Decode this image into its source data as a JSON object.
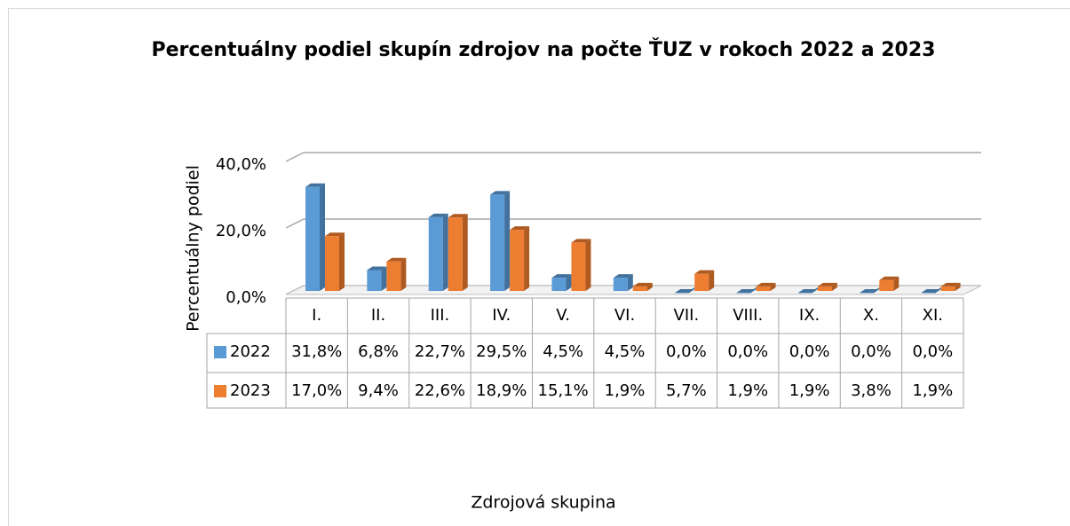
{
  "chart_data": {
    "type": "bar3d",
    "title": "Percentuálny podiel skupín zdrojov na počte ŤUZ v rokoch 2022 a 2023",
    "xlabel": "Zdrojová skupina",
    "ylabel": "Percentuálny podiel",
    "categories": [
      "I.",
      "II.",
      "III.",
      "IV.",
      "V.",
      "VI.",
      "VII.",
      "VIII.",
      "IX.",
      "X.",
      "XI."
    ],
    "series": [
      {
        "name": "2022",
        "color": "#5b9bd5",
        "side": "#41719c",
        "values": [
          31.8,
          6.8,
          22.7,
          29.5,
          4.5,
          4.5,
          0.0,
          0.0,
          0.0,
          0.0,
          0.0
        ],
        "value_labels": [
          "31,8%",
          "6,8%",
          "22,7%",
          "29,5%",
          "4,5%",
          "4,5%",
          "0,0%",
          "0,0%",
          "0,0%",
          "0,0%",
          "0,0%"
        ]
      },
      {
        "name": "2023",
        "color": "#ed7d31",
        "side": "#ae5a21",
        "values": [
          17.0,
          9.4,
          22.6,
          18.9,
          15.1,
          1.9,
          5.7,
          1.9,
          1.9,
          3.8,
          1.9
        ],
        "value_labels": [
          "17,0%",
          "9,4%",
          "22,6%",
          "18,9%",
          "15,1%",
          "1,9%",
          "5,7%",
          "1,9%",
          "1,9%",
          "3,8%",
          "1,9%"
        ]
      }
    ],
    "ylim": [
      0,
      40
    ],
    "yticks": [
      {
        "value": 0,
        "label": "0,0%"
      },
      {
        "value": 20,
        "label": "20,0%"
      },
      {
        "value": 40,
        "label": "40,0%"
      }
    ],
    "grid": true
  }
}
